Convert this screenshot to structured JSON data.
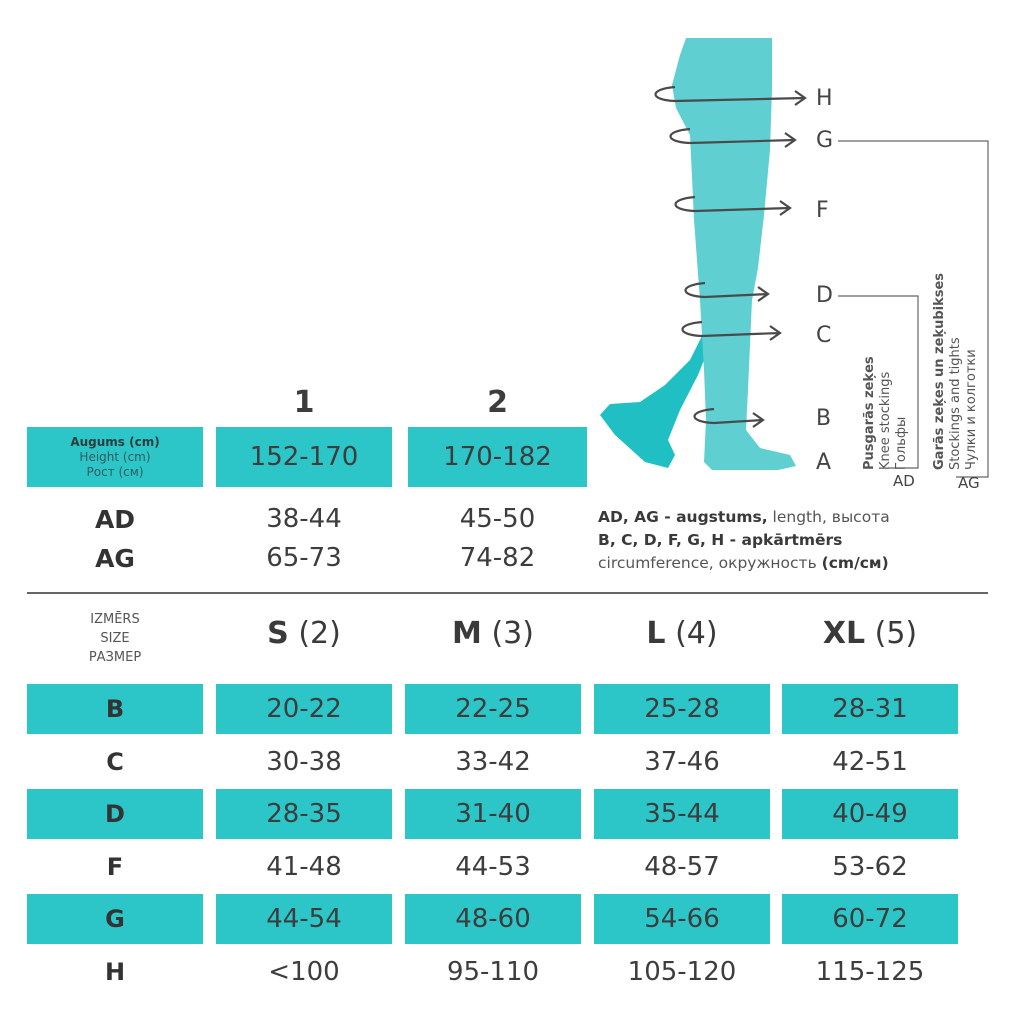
{
  "colors": {
    "teal": "#2cc5c8",
    "leg_front": "#5fcfd2",
    "leg_back": "#1fbfc4",
    "text": "#3a3a3a"
  },
  "diagram": {
    "letters": [
      "H",
      "G",
      "F",
      "D",
      "C",
      "B",
      "A"
    ],
    "brackets": {
      "ad": {
        "label": "AD",
        "lines": [
          "Pusgarās zeķes",
          "Knee stockings",
          "Гольфы"
        ]
      },
      "ag": {
        "label": "AG",
        "lines": [
          "Garās zeķes un zeķubikses",
          "Stockings and tights",
          "Чулки и колготки"
        ]
      }
    }
  },
  "height_table": {
    "columns": [
      "1",
      "2"
    ],
    "label": [
      "Augums (cm)",
      "Height (cm)",
      "Рост (см)"
    ],
    "height": [
      "152-170",
      "170-182"
    ],
    "rows": [
      {
        "label": "AD",
        "values": [
          "38-44",
          "45-50"
        ]
      },
      {
        "label": "AG",
        "values": [
          "65-73",
          "74-82"
        ]
      }
    ]
  },
  "legend": {
    "line1_bold": "AD, AG - augstums,",
    "line1_rest": " length, высота",
    "line2": "B, C, D, F, G, H - apkārtmērs",
    "line3_rest": "circumference, окружность ",
    "line3_bold": "(cm/см)"
  },
  "size_table": {
    "label": [
      "IZMĒRS",
      "SIZE",
      "РАЗМЕР"
    ],
    "sizes": [
      {
        "name": "S",
        "num": "(2)"
      },
      {
        "name": "M",
        "num": "(3)"
      },
      {
        "name": "L",
        "num": "(4)"
      },
      {
        "name": "XL",
        "num": "(5)"
      }
    ],
    "rows": [
      {
        "label": "B",
        "values": [
          "20-22",
          "22-25",
          "25-28",
          "28-31"
        ],
        "highlight": true
      },
      {
        "label": "C",
        "values": [
          "30-38",
          "33-42",
          "37-46",
          "42-51"
        ],
        "highlight": false
      },
      {
        "label": "D",
        "values": [
          "28-35",
          "31-40",
          "35-44",
          "40-49"
        ],
        "highlight": true
      },
      {
        "label": "F",
        "values": [
          "41-48",
          "44-53",
          "48-57",
          "53-62"
        ],
        "highlight": false
      },
      {
        "label": "G",
        "values": [
          "44-54",
          "48-60",
          "54-66",
          "60-72"
        ],
        "highlight": true
      },
      {
        "label": "H",
        "values": [
          "<100",
          "95-110",
          "105-120",
          "115-125"
        ],
        "highlight": false
      }
    ]
  }
}
